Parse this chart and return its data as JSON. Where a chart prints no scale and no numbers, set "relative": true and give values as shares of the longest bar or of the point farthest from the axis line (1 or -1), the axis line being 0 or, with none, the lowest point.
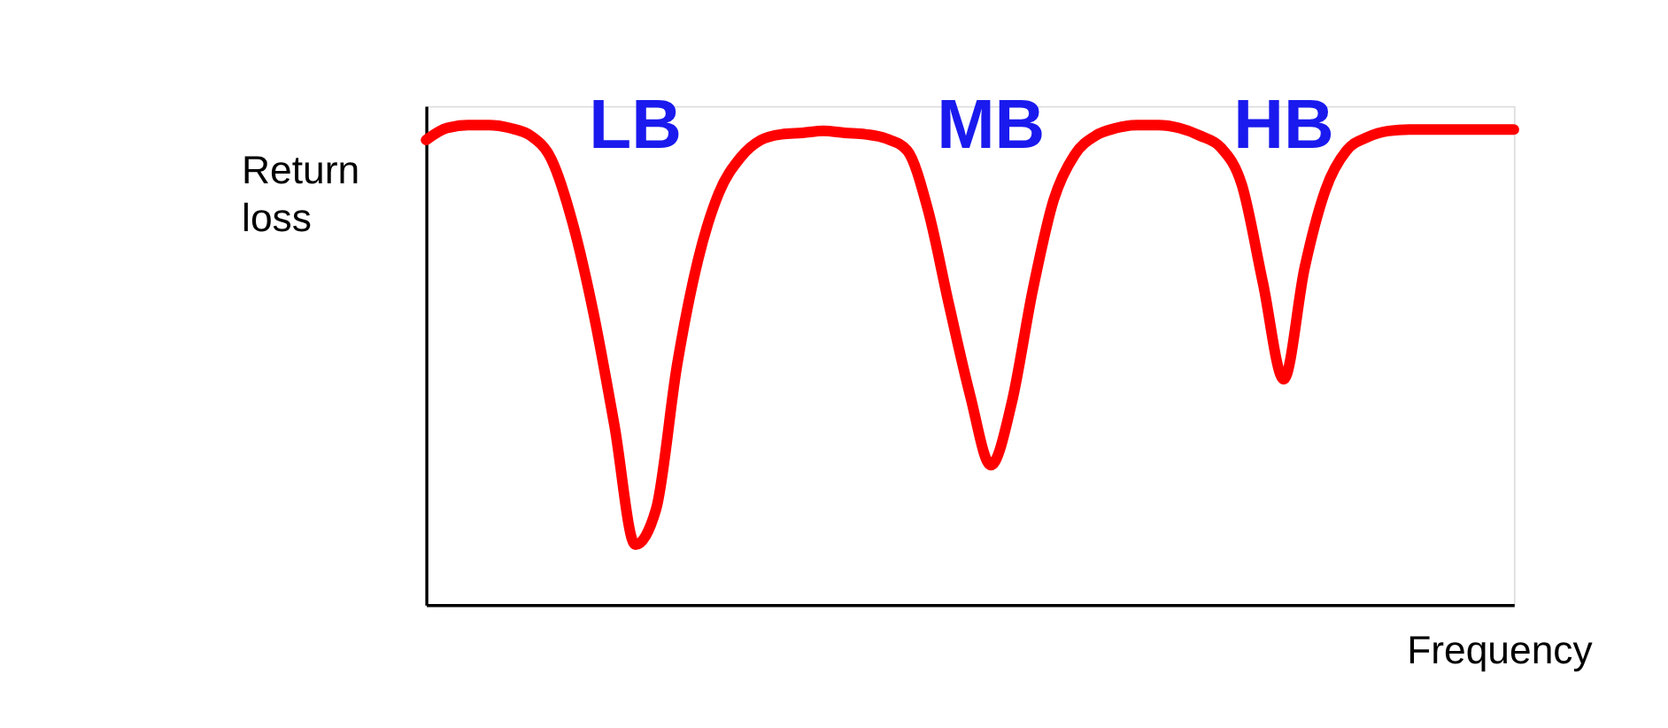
{
  "chart_data": {
    "type": "line",
    "relative": true,
    "xlabel": "Frequency",
    "ylabel": "Return loss",
    "annotations": [
      "LB",
      "MB",
      "HB"
    ],
    "categories": [
      null,
      null,
      null,
      null,
      null,
      null,
      null,
      null,
      null,
      null,
      null,
      null,
      null,
      null,
      null,
      null,
      null,
      null,
      null,
      null,
      null,
      null,
      null,
      null,
      null,
      null,
      null,
      null,
      null,
      null,
      null,
      null,
      null,
      null,
      null,
      null,
      null,
      null,
      null,
      null,
      null,
      null,
      null,
      null,
      null,
      null,
      null,
      null,
      null,
      null,
      null,
      null,
      null
    ],
    "series": [
      {
        "color": "#ff0000",
        "values": [
          0.969,
          0.994,
          1.0,
          1.0,
          0.994,
          0.978,
          0.928,
          0.797,
          0.609,
          0.375,
          0.125,
          0.2,
          0.5,
          0.719,
          0.859,
          0.931,
          0.969,
          0.981,
          0.984,
          0.988,
          0.984,
          0.981,
          0.972,
          0.947,
          0.822,
          0.625,
          0.438,
          0.291,
          0.422,
          0.656,
          0.844,
          0.938,
          0.978,
          0.994,
          1.0,
          1.0,
          0.994,
          0.978,
          0.953,
          0.875,
          0.672,
          0.47,
          0.703,
          0.866,
          0.947,
          0.975,
          0.988,
          0.991,
          0.991,
          0.991,
          0.991,
          0.991,
          0.991
        ]
      }
    ]
  }
}
